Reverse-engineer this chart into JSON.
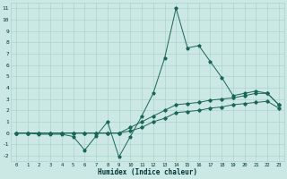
{
  "xlabel": "Humidex (Indice chaleur)",
  "background_color": "#cce8e4",
  "grid_color": "#aad4cc",
  "line_color": "#1a6655",
  "xlim": [
    -0.5,
    23.5
  ],
  "ylim": [
    -2.5,
    11.5
  ],
  "xticks": [
    0,
    1,
    2,
    3,
    4,
    5,
    6,
    7,
    8,
    9,
    10,
    11,
    12,
    13,
    14,
    15,
    16,
    17,
    18,
    19,
    20,
    21,
    22,
    23
  ],
  "yticks": [
    -2,
    -1,
    0,
    1,
    2,
    3,
    4,
    5,
    6,
    7,
    8,
    9,
    10,
    11
  ],
  "line1_x": [
    0,
    1,
    2,
    3,
    4,
    5,
    6,
    7,
    8,
    9,
    10,
    11,
    12,
    13,
    14,
    15,
    16,
    17,
    18,
    19,
    20,
    21,
    22,
    23
  ],
  "line1_y": [
    0.0,
    0.0,
    -0.1,
    -0.1,
    -0.1,
    -0.3,
    -1.5,
    -0.25,
    1.0,
    -2.1,
    -0.3,
    1.5,
    3.5,
    6.6,
    11.0,
    7.5,
    7.7,
    6.3,
    4.9,
    3.3,
    3.5,
    3.7,
    3.5,
    2.5
  ],
  "line2_x": [
    0,
    1,
    2,
    3,
    4,
    5,
    6,
    7,
    8,
    9,
    10,
    11,
    12,
    13,
    14,
    15,
    16,
    17,
    18,
    19,
    20,
    21,
    22,
    23
  ],
  "line2_y": [
    0.0,
    0.0,
    0.0,
    0.0,
    0.0,
    0.0,
    0.0,
    0.0,
    0.0,
    0.0,
    0.5,
    1.0,
    1.5,
    2.0,
    2.5,
    2.6,
    2.7,
    2.9,
    3.0,
    3.1,
    3.3,
    3.5,
    3.5,
    2.5
  ],
  "line3_x": [
    0,
    1,
    2,
    3,
    4,
    5,
    6,
    7,
    8,
    9,
    10,
    11,
    12,
    13,
    14,
    15,
    16,
    17,
    18,
    19,
    20,
    21,
    22,
    23
  ],
  "line3_y": [
    0.0,
    0.0,
    0.0,
    0.0,
    0.0,
    0.0,
    0.0,
    0.0,
    0.0,
    0.0,
    0.2,
    0.5,
    1.0,
    1.3,
    1.8,
    1.9,
    2.0,
    2.2,
    2.3,
    2.5,
    2.6,
    2.7,
    2.8,
    2.2
  ]
}
